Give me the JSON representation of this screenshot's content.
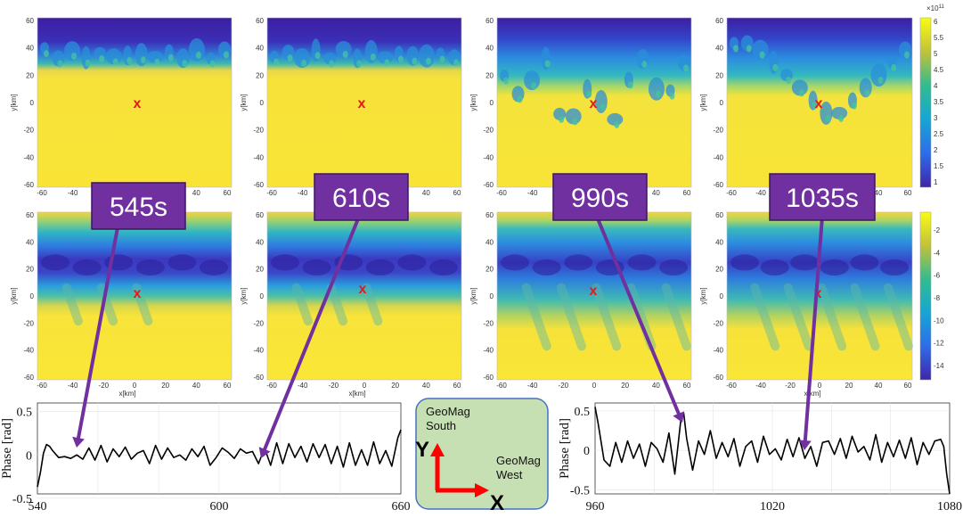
{
  "colors": {
    "panel_yellow": "#f7e43a",
    "panel_dark": "#3c1fa0",
    "panel_cyan": "#39b5b0",
    "label_box": "#7030a0",
    "arrow": "#7030a0",
    "marker": "#e8161b",
    "legend_bg": "#c6e0b4",
    "legend_border": "#4472c4",
    "axis_arrow": "#ff0000"
  },
  "panels": {
    "marker_label": "x",
    "ylabel": "y[km]",
    "xlabel": "x[km]",
    "y_ticks": [
      "60",
      "40",
      "20",
      "0",
      "-20",
      "-40",
      "-60"
    ],
    "x_ticks_full": [
      "-60",
      "-40",
      "-20",
      "0",
      "20",
      "40",
      "60"
    ],
    "x_ticks_top": [
      "-60",
      "-40",
      "40",
      "60"
    ]
  },
  "time_labels": [
    "545s",
    "610s",
    "990s",
    "1035s"
  ],
  "colorbar_top": {
    "exponent": "×10",
    "exponent_power": "11",
    "ticks": [
      "6",
      "5.5",
      "5",
      "4.5",
      "4",
      "3.5",
      "3",
      "2.5",
      "2",
      "1.5",
      "1"
    ]
  },
  "colorbar_bottom": {
    "ticks": [
      "-2",
      "-4",
      "-6",
      "-8",
      "-10",
      "-12",
      "-14"
    ]
  },
  "legend": {
    "y_label": "Y",
    "x_label": "X",
    "south_line1": "GeoMag",
    "south_line2": "South",
    "west_line1": "GeoMag",
    "west_line2": "West"
  },
  "chart_data": [
    {
      "type": "line",
      "ylabel": "Phase [rad]",
      "xlim": [
        540,
        660
      ],
      "ylim": [
        -0.45,
        0.6
      ],
      "x_ticks": [
        "540",
        "600",
        "660"
      ],
      "y_ticks": [
        "0.5",
        "0",
        "-0.5"
      ],
      "grid": true,
      "series": [
        {
          "x": [
            540,
            541,
            542,
            543,
            544,
            545,
            547,
            549,
            551,
            553,
            555,
            557,
            559,
            561,
            563,
            565,
            567,
            569,
            571,
            573,
            575,
            577,
            579,
            581,
            583,
            585,
            587,
            589,
            591,
            593,
            595,
            597,
            599,
            601,
            603,
            605,
            607,
            609,
            611,
            613,
            615,
            617,
            619,
            621,
            623,
            625,
            627,
            629,
            631,
            633,
            635,
            637,
            639,
            641,
            643,
            645,
            647,
            649,
            651,
            653,
            655,
            657,
            659,
            660
          ],
          "y": [
            -0.37,
            -0.2,
            0.02,
            0.12,
            0.1,
            0.05,
            -0.03,
            -0.02,
            -0.04,
            0.0,
            -0.05,
            0.08,
            -0.06,
            0.11,
            -0.08,
            0.07,
            -0.02,
            0.09,
            -0.05,
            0.02,
            0.05,
            -0.1,
            0.11,
            -0.05,
            0.08,
            -0.03,
            0.0,
            -0.06,
            0.07,
            -0.02,
            0.1,
            -0.12,
            -0.03,
            0.08,
            0.03,
            -0.04,
            0.07,
            0.02,
            0.04,
            -0.1,
            0.08,
            -0.12,
            0.14,
            -0.1,
            0.13,
            -0.03,
            0.1,
            -0.08,
            0.13,
            -0.03,
            0.12,
            -0.1,
            0.1,
            -0.14,
            0.14,
            -0.12,
            0.06,
            -0.12,
            0.15,
            -0.1,
            0.05,
            -0.13,
            0.2,
            0.29
          ]
        }
      ]
    },
    {
      "type": "line",
      "ylabel": "Phase [rad]",
      "xlim": [
        960,
        1080
      ],
      "ylim": [
        -0.55,
        0.6
      ],
      "x_ticks": [
        "960",
        "1020",
        "1080"
      ],
      "y_ticks": [
        "0.5",
        "0",
        "-0.5"
      ],
      "grid": true,
      "series": [
        {
          "x": [
            960,
            961,
            962,
            963,
            965,
            967,
            969,
            971,
            973,
            975,
            977,
            979,
            981,
            983,
            985,
            987,
            989,
            990,
            991,
            993,
            995,
            997,
            999,
            1001,
            1003,
            1005,
            1007,
            1009,
            1011,
            1013,
            1015,
            1017,
            1019,
            1021,
            1023,
            1025,
            1027,
            1029,
            1031,
            1033,
            1035,
            1037,
            1039,
            1041,
            1043,
            1045,
            1047,
            1049,
            1051,
            1053,
            1055,
            1057,
            1059,
            1061,
            1063,
            1065,
            1067,
            1069,
            1071,
            1073,
            1075,
            1077,
            1078,
            1079,
            1080
          ],
          "y": [
            0.55,
            0.35,
            0.12,
            -0.12,
            -0.2,
            0.1,
            -0.15,
            0.12,
            -0.1,
            0.08,
            -0.2,
            0.1,
            0.02,
            -0.15,
            0.22,
            -0.3,
            0.38,
            0.47,
            0.15,
            -0.25,
            0.12,
            -0.05,
            0.25,
            -0.1,
            0.1,
            -0.08,
            0.15,
            -0.2,
            0.05,
            0.12,
            -0.15,
            0.18,
            -0.05,
            0.02,
            -0.12,
            0.14,
            -0.08,
            0.16,
            -0.1,
            0.05,
            -0.2,
            0.1,
            0.12,
            -0.05,
            0.15,
            -0.1,
            0.18,
            -0.02,
            0.05,
            -0.12,
            0.2,
            -0.15,
            0.1,
            -0.08,
            0.13,
            -0.1,
            0.16,
            -0.18,
            0.1,
            -0.05,
            0.12,
            0.14,
            0.05,
            -0.3,
            -0.55
          ]
        }
      ]
    }
  ]
}
